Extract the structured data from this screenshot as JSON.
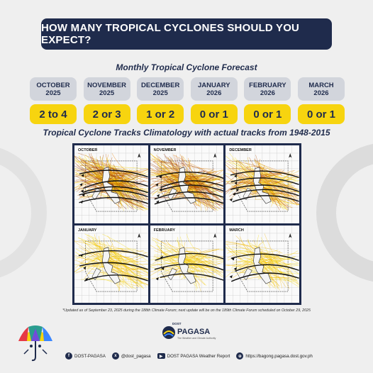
{
  "header": {
    "title": "HOW MANY TROPICAL CYCLONES SHOULD YOU EXPECT?"
  },
  "forecast": {
    "title": "Monthly Tropical Cyclone Forecast",
    "months": [
      {
        "month": "OCTOBER",
        "year": "2025",
        "count": "2 to 4"
      },
      {
        "month": "NOVEMBER",
        "year": "2025",
        "count": "2 or 3"
      },
      {
        "month": "DECEMBER",
        "year": "2025",
        "count": "1 or 2"
      },
      {
        "month": "JANUARY",
        "year": "2026",
        "count": "0 or 1"
      },
      {
        "month": "FEBRUARY",
        "year": "2026",
        "count": "0 or 1"
      },
      {
        "month": "MARCH",
        "year": "2026",
        "count": "0 or 1"
      }
    ]
  },
  "climatology": {
    "title": "Tropical Cyclone Tracks Climatology with actual tracks from 1948-2015",
    "panels": [
      {
        "label": "OCTOBER",
        "density": 1.0
      },
      {
        "label": "NOVEMBER",
        "density": 0.85
      },
      {
        "label": "DECEMBER",
        "density": 0.6
      },
      {
        "label": "JANUARY",
        "density": 0.3
      },
      {
        "label": "FEBRUARY",
        "density": 0.2
      },
      {
        "label": "MARCH",
        "density": 0.25
      }
    ]
  },
  "footnote": "*Updated as of September 23, 2025 during the 188th Climate Forum; next update will be on the 189th Climate Forum scheduled on October 29, 2025",
  "branding": {
    "dost": "DOST",
    "name": "PAGASA",
    "tagline": "The Weather and Climate Authority"
  },
  "socials": [
    {
      "icon": "facebook-icon",
      "glyph": "f",
      "label": "DOST-PAGASA"
    },
    {
      "icon": "twitter-x-icon",
      "glyph": "x",
      "label": "@dost_pagasa"
    },
    {
      "icon": "youtube-icon",
      "glyph": "▶",
      "label": "DOST PAGASA Weather Report"
    },
    {
      "icon": "globe-icon",
      "glyph": "⊕",
      "label": "https://bagong.pagasa.dost.gov.ph"
    }
  ],
  "colors": {
    "navy": "#1f2b4c",
    "yellow": "#f7d40f",
    "label_grey": "#d2d5dc"
  }
}
